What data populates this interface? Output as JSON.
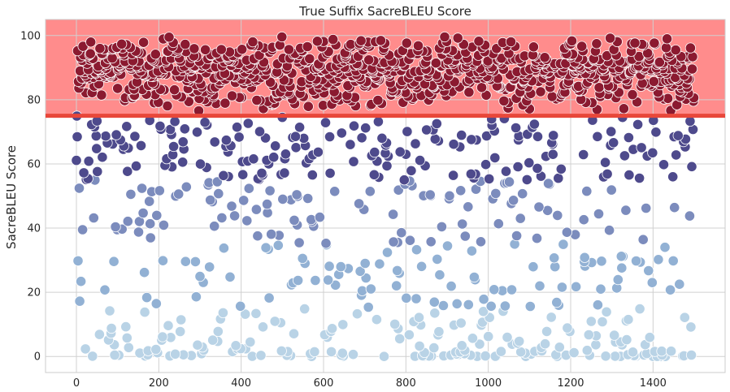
{
  "chart_data": {
    "type": "scatter",
    "title": "True Suffix SacreBLEU Score",
    "xlabel": "",
    "ylabel": "SacreBLEU Score",
    "xlim": [
      -75,
      1575
    ],
    "ylim": [
      -5,
      105
    ],
    "x_ticks": [
      0,
      200,
      400,
      600,
      800,
      1000,
      1200,
      1400
    ],
    "y_ticks": [
      0,
      20,
      40,
      60,
      80,
      100
    ],
    "grid": true,
    "threshold_line": {
      "y": 75,
      "color": "#e8473a"
    },
    "highlight_band": {
      "y_from": 75,
      "y_to": 105,
      "color": "#ff8c8c"
    },
    "n_points": 1500,
    "color_bins": [
      {
        "range": [
          0,
          15
        ],
        "color": "#b9d3e6"
      },
      {
        "range": [
          15,
          35
        ],
        "color": "#92b1d4"
      },
      {
        "range": [
          35,
          55
        ],
        "color": "#7c8cbd"
      },
      {
        "range": [
          55,
          75
        ],
        "color": "#4e4a8c"
      },
      {
        "range": [
          75,
          100
        ],
        "color": "#8b1a30"
      }
    ],
    "distribution_note_points": {
      "share_high_75_100": 0.62,
      "share_55_75": 0.12,
      "share_35_55": 0.07,
      "share_15_35": 0.07,
      "share_0_15": 0.12
    }
  }
}
